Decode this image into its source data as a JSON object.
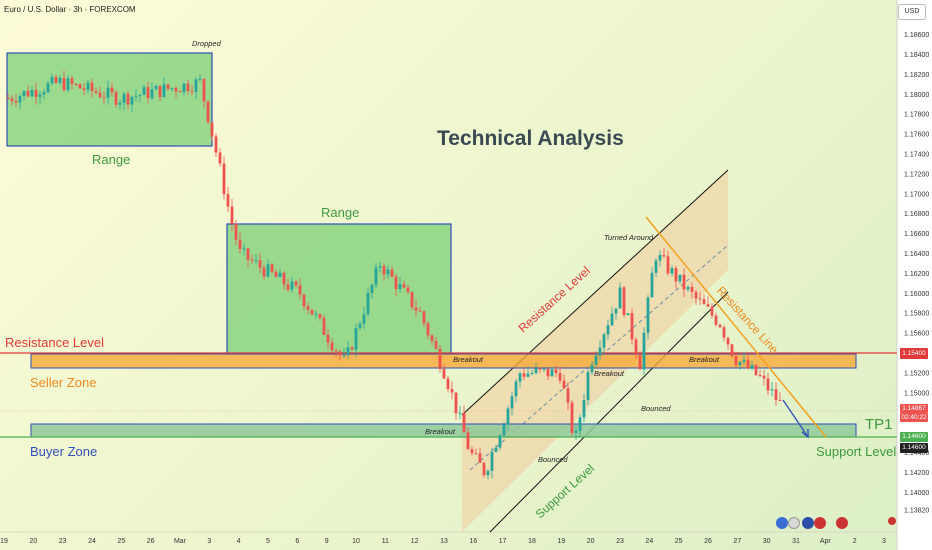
{
  "header": {
    "title": "Euro / U.S. Dollar · 3h · FOREXCOM",
    "currency": "USD"
  },
  "chart_data": {
    "type": "candlestick",
    "title": "Technical Analysis",
    "y_ticks": [
      "1.18600",
      "1.18400",
      "1.18200",
      "1.18000",
      "1.17800",
      "1.17600",
      "1.17400",
      "1.17200",
      "1.17000",
      "1.16800",
      "1.16600",
      "1.16400",
      "1.16200",
      "1.16000",
      "1.15800",
      "1.15600",
      "1.15200",
      "1.15000",
      "1.14400",
      "1.14200",
      "1.14000",
      "1.13820"
    ],
    "x_ticks": [
      "19",
      "20",
      "23",
      "24",
      "25",
      "26",
      "Mar",
      "3",
      "4",
      "5",
      "6",
      "9",
      "10",
      "11",
      "12",
      "13",
      "16",
      "17",
      "18",
      "19",
      "20",
      "23",
      "24",
      "25",
      "26",
      "27",
      "30",
      "31",
      "Apr",
      "2",
      "3"
    ],
    "price_tags": {
      "resistance": "1.15400",
      "current": "1.14867",
      "countdown": "02:40:22",
      "tp1_a": "1.14600",
      "tp1_b": "1.14600"
    },
    "annotations": {
      "range_top": "Range",
      "range_mid": "Range",
      "dropped": "Dropped",
      "resistance_level": "Resistance Level",
      "seller_zone": "Seller Zone",
      "buyer_zone": "Buyer Zone",
      "tp1": "TP1",
      "support_level": "Support Level",
      "channel_resistance": "Resistance Level",
      "channel_support": "Support Level",
      "resistance_line": "Resistance Line",
      "turned_around": "Turned Around",
      "breakout_1": "Breakout",
      "breakout_2": "Breakout",
      "breakout_3": "Breakout",
      "breakout_4": "Breakout",
      "bounced_1": "Bounced",
      "bounced_2": "Bounced"
    },
    "colors": {
      "bull": "#26a69a",
      "bear": "#ef5350",
      "seller_zone": "#f7b24a",
      "buyer_zone": "#8fc99b",
      "range_box": "#6fc36f",
      "box_border": "#2f4fb8",
      "resistance_red": "#e23a3a",
      "support_green": "#4caf50",
      "channel_fill": "#f2d3a3",
      "resistance_line": "#f4a11d"
    }
  }
}
